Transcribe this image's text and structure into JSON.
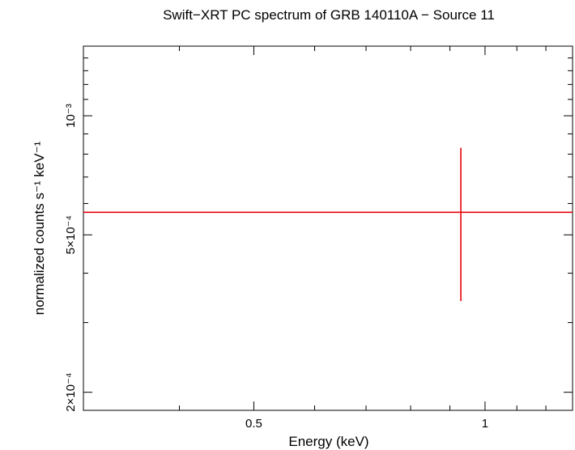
{
  "chart_data": {
    "type": "scatter",
    "title": "Swift−XRT PC spectrum of GRB 140110A − Source 11",
    "xlabel": "Energy (keV)",
    "ylabel": "normalized counts s⁻¹ keV⁻¹",
    "x_scale": "log",
    "y_scale": "log",
    "xlim": [
      0.3,
      1.3
    ],
    "ylim": [
      0.00018,
      0.0015
    ],
    "x_ticks": [
      {
        "value": 0.5,
        "label": "0.5"
      },
      {
        "value": 1,
        "label": "1"
      }
    ],
    "y_ticks": [
      {
        "value": 0.001,
        "label": "10⁻³"
      },
      {
        "value": 0.0005,
        "label": "5×10⁻⁴"
      },
      {
        "value": 0.0002,
        "label": "2×10⁻⁴"
      }
    ],
    "series": [
      {
        "color": "#e8000b",
        "points": [
          {
            "x": 0.93,
            "x_low": 0.3,
            "x_high": 1.3,
            "y": 0.00057,
            "y_low": 0.00034,
            "y_high": 0.00083
          }
        ]
      }
    ],
    "grid": false
  }
}
